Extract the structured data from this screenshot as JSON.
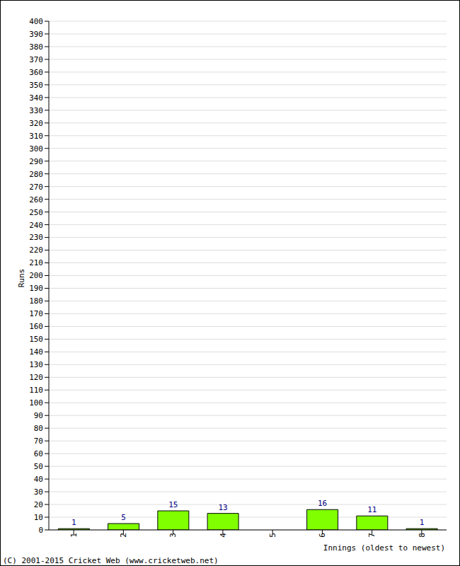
{
  "chart_data": {
    "type": "bar",
    "categories": [
      "1",
      "2",
      "3",
      "4",
      "5",
      "6",
      "7",
      "8"
    ],
    "values": [
      1,
      5,
      15,
      13,
      0,
      16,
      11,
      1
    ],
    "color": "#80ff00",
    "ylim": [
      0,
      400
    ],
    "yticks": [
      0,
      10,
      20,
      30,
      40,
      50,
      60,
      70,
      80,
      90,
      100,
      110,
      120,
      130,
      140,
      150,
      160,
      170,
      180,
      190,
      200,
      210,
      220,
      230,
      240,
      250,
      260,
      270,
      280,
      290,
      300,
      310,
      320,
      330,
      340,
      350,
      360,
      370,
      380,
      390,
      400
    ],
    "xlabel": "Innings (oldest to newest)",
    "ylabel": "Runs",
    "annotations": [
      "(C) 2001-2015 Cricket Web (www.cricketweb.net)"
    ],
    "grid": true,
    "data_labels": true
  }
}
